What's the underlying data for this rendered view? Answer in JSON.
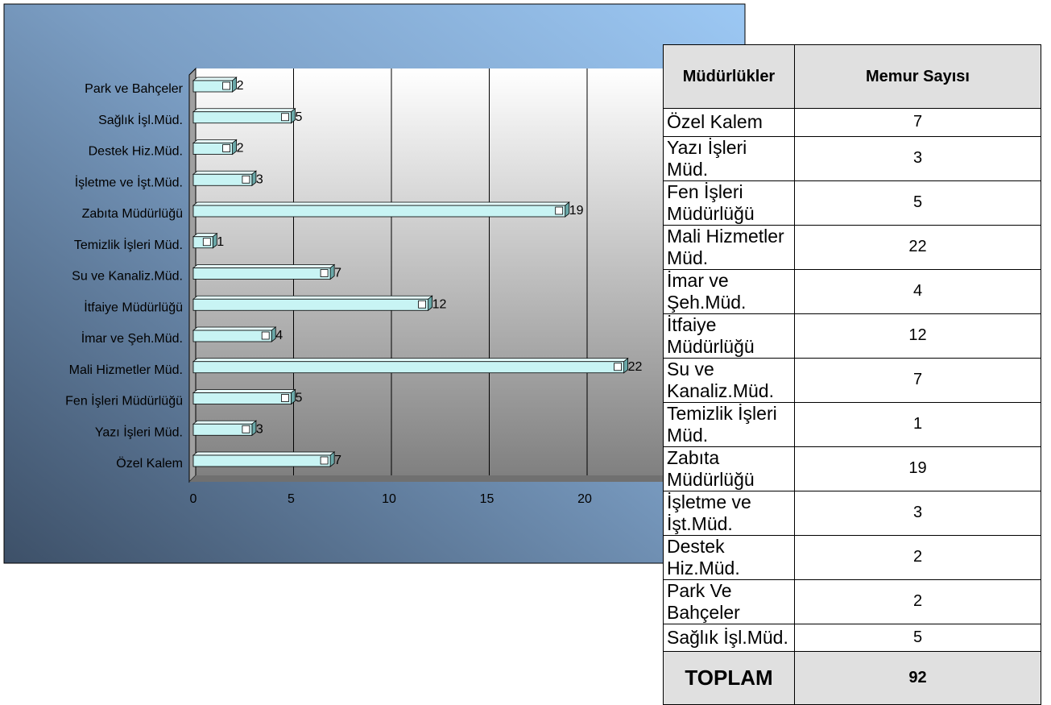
{
  "chart_data": {
    "type": "hbar",
    "categories": [
      "Özel Kalem",
      "Yazı İşleri Müd.",
      "Fen İşleri Müdürlüğü",
      "Mali Hizmetler Müd.",
      "İmar ve Şeh.Müd.",
      "İtfaiye Müdürlüğü",
      "Su ve Kanaliz.Müd.",
      "Temizlik İşleri Müd.",
      "Zabıta Müdürlüğü",
      "İşletme ve İşt.Müd.",
      "Destek Hiz.Müd.",
      "Sağlık İşl.Müd.",
      "Park ve Bahçeler"
    ],
    "values": [
      7,
      3,
      5,
      22,
      4,
      12,
      7,
      1,
      19,
      3,
      2,
      5,
      2
    ],
    "color": "#c8f4f4",
    "xlim": [
      0,
      25
    ],
    "xticks": [
      0,
      5,
      10,
      15,
      20
    ],
    "grid": true
  },
  "table": {
    "headers": [
      "Müdürlükler",
      "Memur Sayısı"
    ],
    "rows": [
      [
        "Özel Kalem",
        7
      ],
      [
        "Yazı İşleri Müd.",
        3
      ],
      [
        "Fen İşleri Müdürlüğü",
        5
      ],
      [
        "Mali Hizmetler Müd.",
        22
      ],
      [
        "İmar ve Şeh.Müd.",
        4
      ],
      [
        "İtfaiye Müdürlüğü",
        12
      ],
      [
        "Su ve Kanaliz.Müd.",
        7
      ],
      [
        "Temizlik İşleri Müd.",
        1
      ],
      [
        "Zabıta Müdürlüğü",
        19
      ],
      [
        "İşletme ve İşt.Müd.",
        3
      ],
      [
        "Destek Hiz.Müd.",
        2
      ],
      [
        "Park Ve Bahçeler",
        2
      ],
      [
        "Sağlık İşl.Müd.",
        5
      ]
    ],
    "total": [
      "TOPLAM",
      92
    ]
  }
}
